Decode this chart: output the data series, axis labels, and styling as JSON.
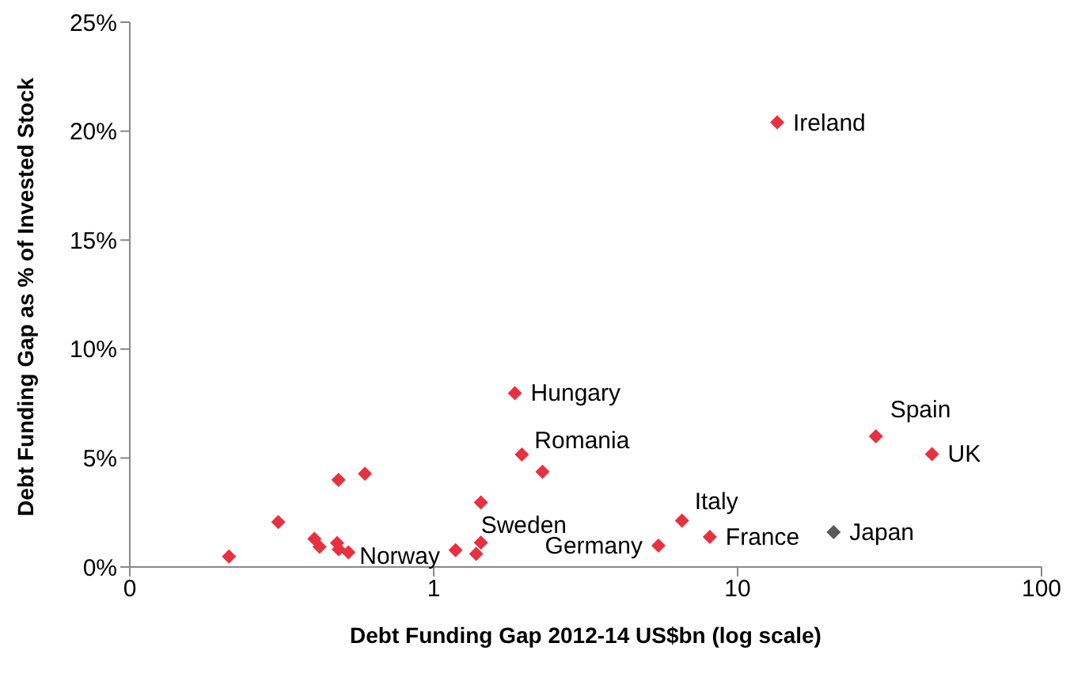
{
  "chart_data": {
    "type": "scatter",
    "xlabel": "Debt Funding Gap 2012-14 US$bn (log scale)",
    "ylabel": "Debt Funding Gap as % of Invested Stock",
    "log": "x",
    "marker": "diamond",
    "grid": false,
    "legend": false,
    "xlim": [
      0.1,
      100
    ],
    "xticks": [
      {
        "value": 0.1,
        "label": "0"
      },
      1,
      10,
      100
    ],
    "ylim": [
      0,
      25
    ],
    "yticks": [
      {
        "value": 0,
        "label": "0%"
      },
      {
        "value": 5,
        "label": "5%"
      },
      {
        "value": 10,
        "label": "10%"
      },
      {
        "value": 15,
        "label": "15%"
      },
      {
        "value": 20,
        "label": "20%"
      },
      {
        "value": 25,
        "label": "25%"
      }
    ],
    "series": [
      {
        "color": "#e8303f",
        "x": [
          0.212,
          0.308,
          0.405,
          0.421,
          0.486,
          0.481,
          0.487,
          0.524,
          0.594,
          1.18,
          1.43,
          1.43,
          1.38,
          1.85,
          1.95,
          2.28,
          5.49,
          6.56,
          8.1,
          13.5,
          28.5,
          43.6
        ],
        "values": [
          0.48,
          2.06,
          1.29,
          0.93,
          4.0,
          1.1,
          0.81,
          0.67,
          4.28,
          0.77,
          2.96,
          1.12,
          0.6,
          7.98,
          5.16,
          4.37,
          0.98,
          2.13,
          1.38,
          20.4,
          6.0,
          5.18
        ]
      },
      {
        "color": "#595959",
        "x": [
          20.7
        ],
        "values": [
          1.6
        ]
      }
    ],
    "annotations": [
      {
        "text": "Ireland",
        "x": 13.5,
        "y": 20.4
      },
      {
        "text": "Hungary",
        "x": 1.85,
        "y": 7.98
      },
      {
        "text": "Romania",
        "x": 1.95,
        "y": 5.16
      },
      {
        "text": "Sweden",
        "x": 1.43,
        "y": 1.12
      },
      {
        "text": "Norway",
        "x": 0.524,
        "y": 0.67
      },
      {
        "text": "Germany",
        "x": 5.49,
        "y": 0.98
      },
      {
        "text": "Italy",
        "x": 6.56,
        "y": 2.13
      },
      {
        "text": "France",
        "x": 8.1,
        "y": 1.38
      },
      {
        "text": "Spain",
        "x": 28.5,
        "y": 6.0
      },
      {
        "text": "UK",
        "x": 43.6,
        "y": 5.18
      },
      {
        "text": "Japan",
        "x": 20.7,
        "y": 1.6
      }
    ]
  }
}
